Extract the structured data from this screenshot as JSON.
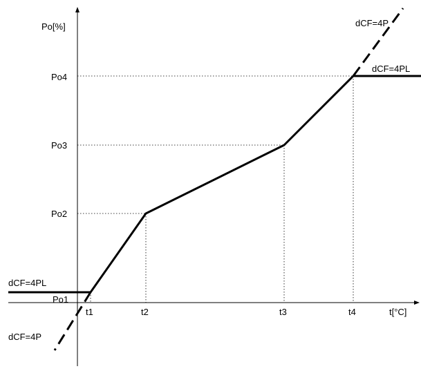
{
  "diagram": {
    "y_axis_label": "Po[%]",
    "x_axis_label": "t[°C]",
    "y_ticks": [
      "Po1",
      "Po2",
      "Po3",
      "Po4"
    ],
    "x_ticks": [
      "t1",
      "t2",
      "t3",
      "t4"
    ],
    "annotations": {
      "top_dashed": "dCF=4P",
      "top_solid": "dCF=4PL",
      "bottom_solid": "dCF=4PL",
      "bottom_dashed": "dCF=4P"
    },
    "line_color": "#000000"
  }
}
